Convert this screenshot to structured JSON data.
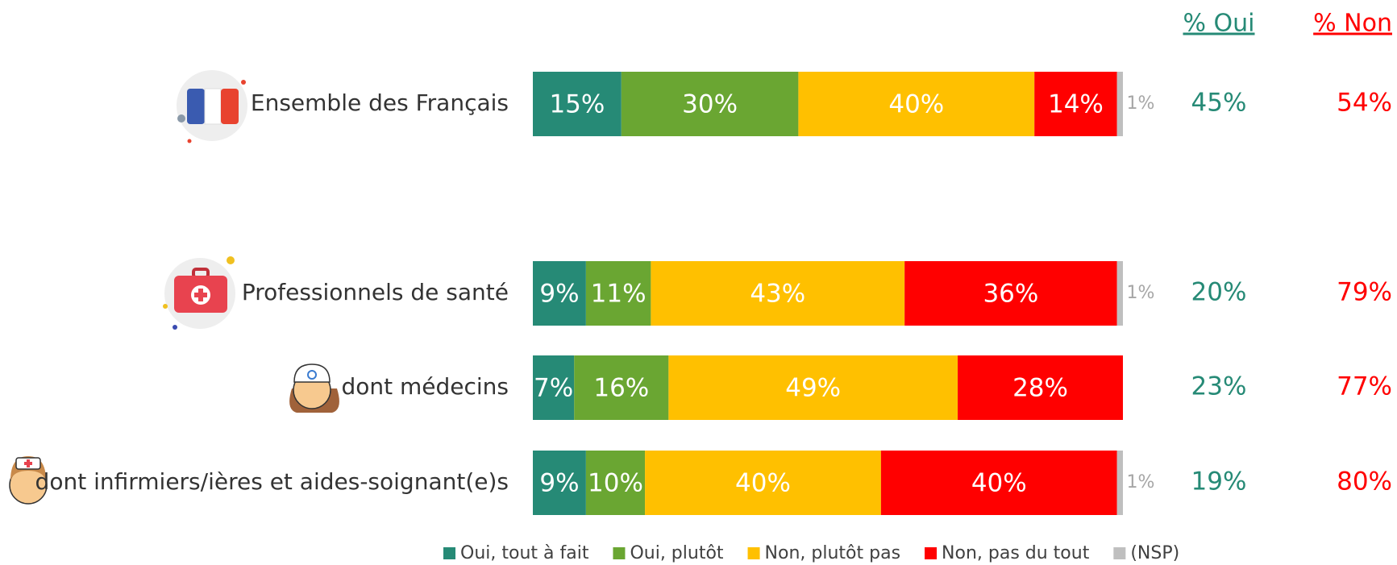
{
  "chart_data": {
    "type": "stacked-bar-horizontal",
    "categories": [
      "Ensemble des Français",
      "Professionnels de santé",
      "dont médecins",
      "dont infirmiers/ières et aides-soignant(e)s"
    ],
    "xlim": [
      0,
      100
    ],
    "legend": "bottom",
    "series": [
      {
        "name": "Oui, tout à fait",
        "color": "#268a76",
        "values": [
          15,
          9,
          7,
          9
        ],
        "value_labels": [
          "15%",
          "9%",
          "7%",
          "9%"
        ]
      },
      {
        "name": "Oui, plutôt",
        "color": "#6aa632",
        "values": [
          30,
          11,
          16,
          10
        ],
        "value_labels": [
          "30%",
          "11%",
          "16%",
          "10%"
        ]
      },
      {
        "name": "Non, plutôt pas",
        "color": "#ffc000",
        "values": [
          40,
          43,
          49,
          40
        ],
        "value_labels": [
          "40%",
          "43%",
          "49%",
          "40%"
        ]
      },
      {
        "name": "Non, pas du tout",
        "color": "#ff0000",
        "values": [
          14,
          36,
          28,
          40
        ],
        "value_labels": [
          "14%",
          "36%",
          "28%",
          "40%"
        ]
      },
      {
        "name": "(NSP)",
        "color": "#bfbfbf",
        "values": [
          1,
          1,
          null,
          1
        ],
        "value_labels": [
          "1%",
          "1%",
          null,
          "1%"
        ]
      }
    ],
    "summary": [
      {
        "name": "% Oui",
        "color": "#268a76",
        "values": [
          45,
          20,
          23,
          19
        ],
        "value_labels": [
          "45%",
          "20%",
          "23%",
          "19%"
        ]
      },
      {
        "name": "% Non",
        "color": "#ff0000",
        "values": [
          54,
          79,
          77,
          80
        ],
        "value_labels": [
          "54%",
          "79%",
          "77%",
          "80%"
        ]
      }
    ]
  }
}
